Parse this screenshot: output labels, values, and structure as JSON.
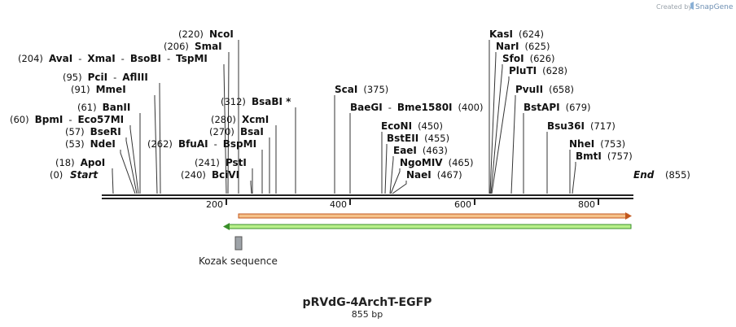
{
  "brand": {
    "prefix": "Created by",
    "name": "SnapGene"
  },
  "map": {
    "title": "pRVdG-4ArchT-EGFP",
    "length_label": "855 bp",
    "start_label": "Start",
    "start_pos": "(0)",
    "end_label": "End",
    "end_pos": "(855)",
    "ticks": [
      "200",
      "400",
      "600",
      "800"
    ],
    "feature_label": "Kozak sequence"
  },
  "sites": [
    {
      "id": "apoi",
      "parts": [
        {
          "t": "pos",
          "v": "(18)"
        },
        {
          "t": "name",
          "v": "ApoI"
        }
      ]
    },
    {
      "id": "ndei",
      "parts": [
        {
          "t": "pos",
          "v": "(53)"
        },
        {
          "t": "name",
          "v": "NdeI"
        }
      ]
    },
    {
      "id": "bseri",
      "parts": [
        {
          "t": "pos",
          "v": "(57)"
        },
        {
          "t": "name",
          "v": "BseRI"
        }
      ]
    },
    {
      "id": "bpmi",
      "parts": [
        {
          "t": "pos",
          "v": "(60)"
        },
        {
          "t": "name",
          "v": "BpmI"
        },
        {
          "t": "sep",
          "v": "-"
        },
        {
          "t": "name",
          "v": "Eco57MI"
        }
      ]
    },
    {
      "id": "banii",
      "parts": [
        {
          "t": "pos",
          "v": "(61)"
        },
        {
          "t": "name",
          "v": "BanII"
        }
      ]
    },
    {
      "id": "mmei",
      "parts": [
        {
          "t": "pos",
          "v": "(91)"
        },
        {
          "t": "name",
          "v": "MmeI"
        }
      ]
    },
    {
      "id": "pcii",
      "parts": [
        {
          "t": "pos",
          "v": "(95)"
        },
        {
          "t": "name",
          "v": "PciI"
        },
        {
          "t": "sep",
          "v": "-"
        },
        {
          "t": "name",
          "v": "AflIII"
        }
      ]
    },
    {
      "id": "avai",
      "parts": [
        {
          "t": "pos",
          "v": "(204)"
        },
        {
          "t": "name",
          "v": "AvaI"
        },
        {
          "t": "sep",
          "v": "-"
        },
        {
          "t": "name",
          "v": "XmaI"
        },
        {
          "t": "sep",
          "v": "-"
        },
        {
          "t": "name",
          "v": "BsoBI"
        },
        {
          "t": "sep",
          "v": "-"
        },
        {
          "t": "name",
          "v": "TspMI"
        }
      ]
    },
    {
      "id": "smai",
      "parts": [
        {
          "t": "pos",
          "v": "(206)"
        },
        {
          "t": "name",
          "v": "SmaI"
        }
      ]
    },
    {
      "id": "ncoi",
      "parts": [
        {
          "t": "pos",
          "v": "(220)"
        },
        {
          "t": "name",
          "v": "NcoI"
        }
      ]
    },
    {
      "id": "bcivi",
      "parts": [
        {
          "t": "pos",
          "v": "(240)"
        },
        {
          "t": "name",
          "v": "BciVI"
        }
      ]
    },
    {
      "id": "psti",
      "parts": [
        {
          "t": "pos",
          "v": "(241)"
        },
        {
          "t": "name",
          "v": "PstI"
        }
      ]
    },
    {
      "id": "bfuai",
      "parts": [
        {
          "t": "pos",
          "v": "(262)"
        },
        {
          "t": "name",
          "v": "BfuAI"
        },
        {
          "t": "sep",
          "v": "-"
        },
        {
          "t": "name",
          "v": "BspMI"
        }
      ]
    },
    {
      "id": "bsai",
      "parts": [
        {
          "t": "pos",
          "v": "(270)"
        },
        {
          "t": "name",
          "v": "BsaI"
        }
      ]
    },
    {
      "id": "xcmi",
      "parts": [
        {
          "t": "pos",
          "v": "(280)"
        },
        {
          "t": "name",
          "v": "XcmI"
        }
      ]
    },
    {
      "id": "bsabi",
      "parts": [
        {
          "t": "pos",
          "v": "(312)"
        },
        {
          "t": "name",
          "v": "BsaBI *"
        }
      ]
    },
    {
      "id": "scai",
      "parts": [
        {
          "t": "name",
          "v": "ScaI"
        },
        {
          "t": "pos",
          "v": "(375)"
        }
      ]
    },
    {
      "id": "baegi",
      "parts": [
        {
          "t": "name",
          "v": "BaeGI"
        },
        {
          "t": "sep",
          "v": "-"
        },
        {
          "t": "name",
          "v": "Bme1580I"
        },
        {
          "t": "pos",
          "v": "(400)"
        }
      ]
    },
    {
      "id": "econi",
      "parts": [
        {
          "t": "name",
          "v": "EcoNI"
        },
        {
          "t": "pos",
          "v": "(450)"
        }
      ]
    },
    {
      "id": "bsteii",
      "parts": [
        {
          "t": "name",
          "v": "BstEII"
        },
        {
          "t": "pos",
          "v": "(455)"
        }
      ]
    },
    {
      "id": "eaei",
      "parts": [
        {
          "t": "name",
          "v": "EaeI"
        },
        {
          "t": "pos",
          "v": "(463)"
        }
      ]
    },
    {
      "id": "ngomiv",
      "parts": [
        {
          "t": "name",
          "v": "NgoMIV"
        },
        {
          "t": "pos",
          "v": "(465)"
        }
      ]
    },
    {
      "id": "naei",
      "parts": [
        {
          "t": "name",
          "v": "NaeI"
        },
        {
          "t": "pos",
          "v": "(467)"
        }
      ]
    },
    {
      "id": "kasi",
      "parts": [
        {
          "t": "name",
          "v": "KasI"
        },
        {
          "t": "pos",
          "v": "(624)"
        }
      ]
    },
    {
      "id": "nari",
      "parts": [
        {
          "t": "name",
          "v": "NarI"
        },
        {
          "t": "pos",
          "v": "(625)"
        }
      ]
    },
    {
      "id": "sfoi",
      "parts": [
        {
          "t": "name",
          "v": "SfoI"
        },
        {
          "t": "pos",
          "v": "(626)"
        }
      ]
    },
    {
      "id": "pluti",
      "parts": [
        {
          "t": "name",
          "v": "PluTI"
        },
        {
          "t": "pos",
          "v": "(628)"
        }
      ]
    },
    {
      "id": "pvuii",
      "parts": [
        {
          "t": "name",
          "v": "PvuII"
        },
        {
          "t": "pos",
          "v": "(658)"
        }
      ]
    },
    {
      "id": "bstapi",
      "parts": [
        {
          "t": "name",
          "v": "BstAPI"
        },
        {
          "t": "pos",
          "v": "(679)"
        }
      ]
    },
    {
      "id": "bsu36i",
      "parts": [
        {
          "t": "name",
          "v": "Bsu36I"
        },
        {
          "t": "pos",
          "v": "(717)"
        }
      ]
    },
    {
      "id": "nhei",
      "parts": [
        {
          "t": "name",
          "v": "NheI"
        },
        {
          "t": "pos",
          "v": "(753)"
        }
      ]
    },
    {
      "id": "bmti",
      "parts": [
        {
          "t": "name",
          "v": "BmtI"
        },
        {
          "t": "pos",
          "v": "(757)"
        }
      ]
    }
  ]
}
